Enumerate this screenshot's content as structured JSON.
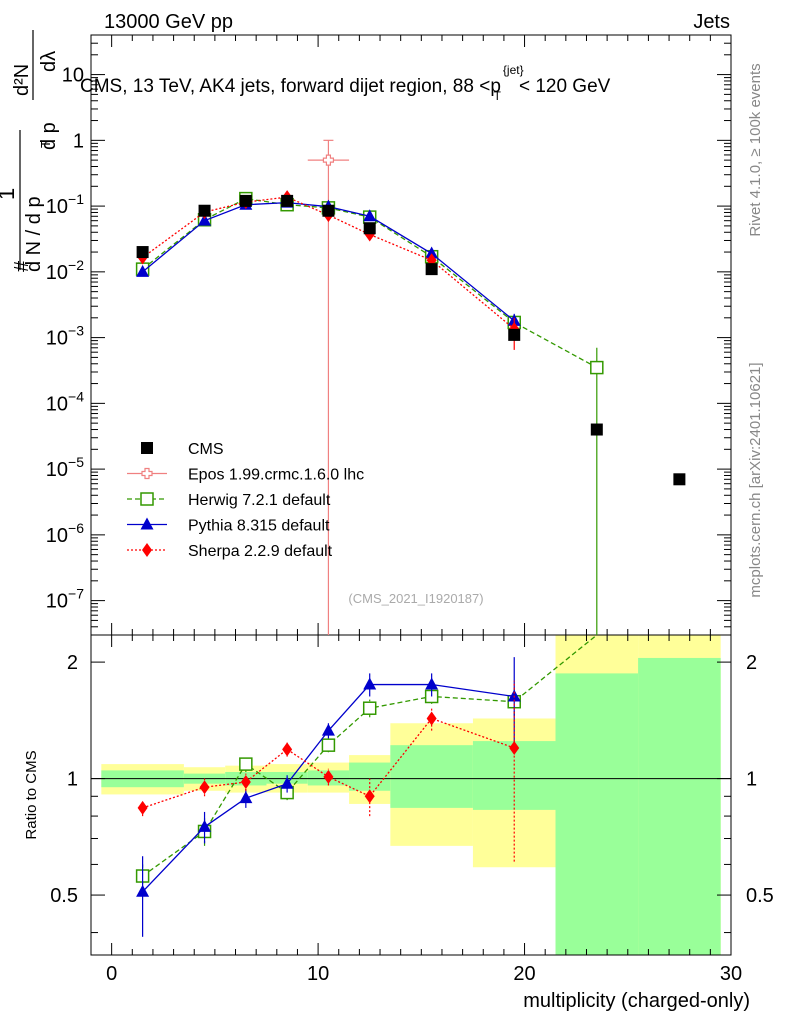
{
  "header": {
    "energy_label": "13000 GeV pp",
    "category_label": "Jets"
  },
  "side_labels": {
    "rivet": "Rivet 4.1.0, ≥ 100k events",
    "mcplots": "mcplots.cern.ch [arXiv:2401.10621]"
  },
  "chart_data": {
    "type": "scatter",
    "title_parts": {
      "pre": "CMS, 13 TeV, AK4 jets, forward dijet region, 88 <",
      "p": "p",
      "sup": "{jet}",
      "sub": "T",
      "post": "< 120 GeV"
    },
    "analysis_id": "(CMS_2021_I1920187)",
    "xlabel": "multiplicity (charged-only)",
    "ylabel_upper": "1/N dN/dpT  d²N/dpT dλ",
    "ylabel_upper_parts": {
      "hash": "#",
      "one": "1",
      "dn_dpt": "d N / d p",
      "t": "T",
      "d2n": "d²N",
      "dpt_dl": "d p",
      "dl": "dλ"
    },
    "ylabel_ratio": "Ratio to CMS",
    "xlim": [
      -1,
      30
    ],
    "ylim_upper": [
      3e-08,
      40
    ],
    "ylim_ratio": [
      0.35,
      2.35
    ],
    "x_ticks": [
      0,
      10,
      20,
      30
    ],
    "y_ticks_upper": [
      {
        "value": 10,
        "base": "10",
        "exp": ""
      },
      {
        "value": 1,
        "base": "1",
        "exp": ""
      },
      {
        "value": 0.1,
        "base": "10",
        "exp": "−1"
      },
      {
        "value": 0.01,
        "base": "10",
        "exp": "−2"
      },
      {
        "value": 0.001,
        "base": "10",
        "exp": "−3"
      },
      {
        "value": 0.0001,
        "base": "10",
        "exp": "−4"
      },
      {
        "value": 1e-05,
        "base": "10",
        "exp": "−5"
      },
      {
        "value": 1e-06,
        "base": "10",
        "exp": "−6"
      },
      {
        "value": 1e-07,
        "base": "10",
        "exp": "−7"
      }
    ],
    "y_ticks_ratio": [
      0.5,
      1,
      2
    ],
    "data": {
      "name": "CMS",
      "x": [
        1.5,
        4.5,
        6.5,
        8.5,
        10.5,
        12.5,
        15.5,
        19.5,
        23.5,
        27.5
      ],
      "y": [
        0.02,
        0.085,
        0.12,
        0.12,
        0.085,
        0.046,
        0.011,
        0.0011,
        4e-05,
        7e-06
      ]
    },
    "data_bands": [
      {
        "x1": -0.5,
        "x2": 3.5,
        "g_lo": 0.95,
        "g_hi": 1.05,
        "y_lo": 0.91,
        "y_hi": 1.09
      },
      {
        "x1": 3.5,
        "x2": 5.5,
        "g_lo": 0.97,
        "g_hi": 1.03,
        "y_lo": 0.93,
        "y_hi": 1.07
      },
      {
        "x1": 5.5,
        "x2": 7.5,
        "g_lo": 0.96,
        "g_hi": 1.04,
        "y_lo": 0.92,
        "y_hi": 1.08
      },
      {
        "x1": 7.5,
        "x2": 9.5,
        "g_lo": 0.97,
        "g_hi": 1.04,
        "y_lo": 0.92,
        "y_hi": 1.09
      },
      {
        "x1": 9.5,
        "x2": 11.5,
        "g_lo": 0.96,
        "g_hi": 1.05,
        "y_lo": 0.92,
        "y_hi": 1.1
      },
      {
        "x1": 11.5,
        "x2": 13.5,
        "g_lo": 0.93,
        "g_hi": 1.1,
        "y_lo": 0.86,
        "y_hi": 1.15
      },
      {
        "x1": 13.5,
        "x2": 17.5,
        "g_lo": 0.84,
        "g_hi": 1.22,
        "y_lo": 0.67,
        "y_hi": 1.39
      },
      {
        "x1": 17.5,
        "x2": 21.5,
        "g_lo": 0.83,
        "g_hi": 1.25,
        "y_lo": 0.59,
        "y_hi": 1.43
      },
      {
        "x1": 21.5,
        "x2": 25.5,
        "g_lo": 0.35,
        "g_hi": 1.87,
        "y_lo": 0.35,
        "y_hi": 2.35
      },
      {
        "x1": 25.5,
        "x2": 29.5,
        "g_lo": 0.35,
        "g_hi": 2.05,
        "y_lo": 0.35,
        "y_hi": 2.35
      }
    ],
    "series": [
      {
        "name": "Epos 1.99.crmc.1.6.0 lhc",
        "legend": "Epos 1.99.crmc.1.6.0 lhc",
        "color": "#f08080",
        "dash": "",
        "marker": "cross-open",
        "x": [
          10.5
        ],
        "y": [
          0.5
        ],
        "ylo": [
          1e-09
        ],
        "yhi": [
          1.0
        ],
        "xerr": 1,
        "ratio": [
          null
        ],
        "rlo": [
          null
        ],
        "rhi": [
          null
        ]
      },
      {
        "name": "Herwig 7.2.1 default",
        "legend": "Herwig 7.2.1 default",
        "color": "#339900",
        "dash": "5,3",
        "marker": "square-open",
        "x": [
          1.5,
          4.5,
          6.5,
          8.5,
          10.5,
          12.5,
          15.5,
          19.5,
          23.5
        ],
        "y": [
          0.011,
          0.062,
          0.13,
          0.105,
          0.094,
          0.068,
          0.017,
          0.0017,
          0.00035
        ],
        "ylo": [
          0.0105,
          0.058,
          0.123,
          0.1,
          0.09,
          0.064,
          0.0163,
          0.0014,
          1e-09
        ],
        "yhi": [
          0.0118,
          0.066,
          0.137,
          0.11,
          0.098,
          0.072,
          0.0178,
          0.002,
          0.0007
        ],
        "xerr": 0,
        "ratio": [
          0.56,
          0.73,
          1.09,
          0.92,
          1.22,
          1.52,
          1.63,
          1.58,
          2.9
        ],
        "rlo": [
          0.51,
          0.67,
          1.04,
          0.88,
          1.17,
          1.44,
          1.56,
          1.45,
          2.9
        ],
        "rhi": [
          0.6,
          0.79,
          1.14,
          0.96,
          1.27,
          1.6,
          1.7,
          1.72,
          2.9
        ]
      },
      {
        "name": "Pythia 8.315 default",
        "legend": "Pythia 8.315 default",
        "color": "#0000cc",
        "dash": "",
        "marker": "triangle",
        "x": [
          1.5,
          4.5,
          6.5,
          8.5,
          10.5,
          12.5,
          15.5,
          19.5
        ],
        "y": [
          0.01,
          0.06,
          0.105,
          0.113,
          0.098,
          0.07,
          0.019,
          0.0018
        ],
        "ylo": [
          0.0093,
          0.056,
          0.1,
          0.108,
          0.093,
          0.066,
          0.018,
          0.0013
        ],
        "yhi": [
          0.0108,
          0.064,
          0.11,
          0.118,
          0.103,
          0.074,
          0.02,
          0.0023
        ],
        "xerr": 0,
        "ratio": [
          0.51,
          0.75,
          0.89,
          0.97,
          1.33,
          1.75,
          1.75,
          1.63
        ],
        "rlo": [
          0.39,
          0.68,
          0.84,
          0.92,
          1.27,
          1.63,
          1.63,
          1.2
        ],
        "rhi": [
          0.63,
          0.82,
          0.94,
          1.02,
          1.39,
          1.87,
          1.87,
          2.06
        ]
      },
      {
        "name": "Sherpa 2.2.9 default",
        "legend": "Sherpa 2.2.9 default",
        "color": "#ff0000",
        "dash": "2,2",
        "marker": "diamond",
        "x": [
          1.5,
          4.5,
          6.5,
          8.5,
          10.5,
          12.5,
          15.5,
          19.5
        ],
        "y": [
          0.0165,
          0.081,
          0.115,
          0.137,
          0.073,
          0.037,
          0.015,
          0.00135
        ],
        "ylo": [
          0.0155,
          0.076,
          0.11,
          0.13,
          0.069,
          0.033,
          0.0135,
          0.00065
        ],
        "yhi": [
          0.0175,
          0.086,
          0.12,
          0.144,
          0.077,
          0.041,
          0.0165,
          0.002
        ],
        "xerr": 0,
        "ratio": [
          0.84,
          0.95,
          0.98,
          1.19,
          1.01,
          0.9,
          1.43,
          1.2
        ],
        "rlo": [
          0.8,
          0.9,
          0.93,
          1.14,
          0.96,
          0.8,
          1.33,
          0.61
        ],
        "rhi": [
          0.88,
          1.0,
          1.03,
          1.24,
          1.06,
          1.0,
          1.53,
          1.79
        ]
      }
    ],
    "legend": [
      {
        "label": "CMS",
        "marker": "square"
      },
      {
        "label": "Epos 1.99.crmc.1.6.0 lhc",
        "marker": "cross-open"
      },
      {
        "label": "Herwig 7.2.1 default",
        "marker": "square-open"
      },
      {
        "label": "Pythia 8.315 default",
        "marker": "triangle"
      },
      {
        "label": "Sherpa 2.2.9 default",
        "marker": "diamond"
      }
    ],
    "legend_position": "bottom-left"
  }
}
